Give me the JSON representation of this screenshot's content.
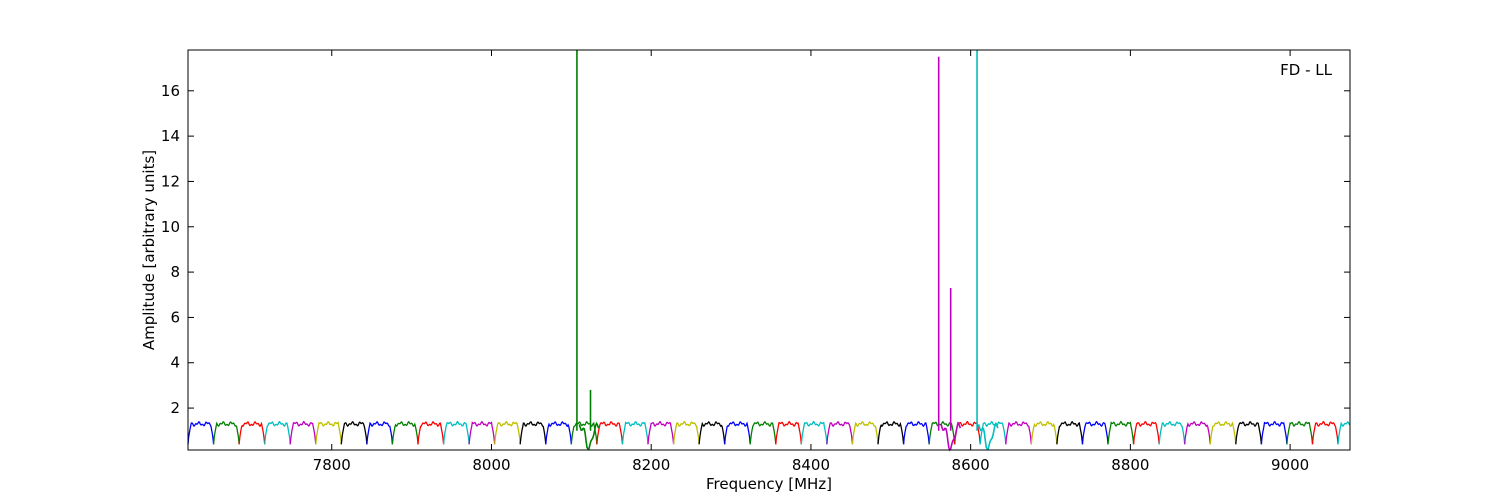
{
  "chart_data": {
    "type": "line",
    "annotation": "FD - LL",
    "xlabel": "Frequency [MHz]",
    "ylabel": "Amplitude [arbitrary units]",
    "xlim": [
      7620,
      9075
    ],
    "ylim": [
      0.15,
      17.8
    ],
    "xticks": [
      7800,
      8000,
      8200,
      8400,
      8600,
      8800,
      9000
    ],
    "xtick_labels": [
      "7800",
      "8000",
      "8200",
      "8400",
      "8600",
      "8800",
      "9000"
    ],
    "yticks": [
      2,
      4,
      6,
      8,
      10,
      12,
      14,
      16
    ],
    "ytick_labels": [
      "2",
      "4",
      "6",
      "8",
      "10",
      "12",
      "14",
      "16"
    ],
    "grid": false,
    "legend": "none",
    "channel_width_mhz": 32,
    "first_channel_start_mhz": 7620,
    "channel_colors": [
      "#0000ff",
      "#008000",
      "#ff0000",
      "#00bfbf",
      "#bf00bf",
      "#bfbf00",
      "#000000"
    ],
    "channel_peak_amplitude": 1.3,
    "channel_edge_amplitude": 0.4,
    "spikes": [
      {
        "x": 8107,
        "y": 17.8,
        "color": "#008000"
      },
      {
        "x": 8124,
        "y": 2.8,
        "color": "#008000"
      },
      {
        "x": 8560,
        "y": 17.5,
        "color": "#bf00bf"
      },
      {
        "x": 8575,
        "y": 7.3,
        "color": "#bf00bf"
      },
      {
        "x": 8608,
        "y": 17.8,
        "color": "#00bfbf"
      }
    ],
    "dips": [
      {
        "x": 8122,
        "y": 0.2,
        "color": "#008000"
      },
      {
        "x": 8575,
        "y": 0.15,
        "color": "#bf00bf"
      },
      {
        "x": 8622,
        "y": 0.2,
        "color": "#00bfbf"
      }
    ]
  }
}
